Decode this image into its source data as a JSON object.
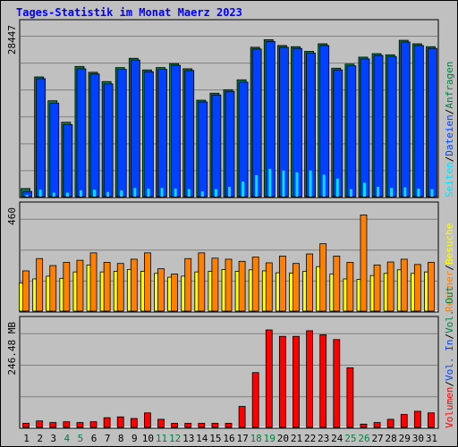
{
  "chart_data": {
    "type": "bar",
    "title": "Tages-Statistik im Monat Maerz 2023",
    "categories": [
      "1",
      "2",
      "3",
      "4",
      "5",
      "6",
      "7",
      "8",
      "9",
      "10",
      "11",
      "12",
      "13",
      "14",
      "15",
      "16",
      "17",
      "18",
      "19",
      "20",
      "21",
      "22",
      "23",
      "24",
      "25",
      "26",
      "27",
      "28",
      "29",
      "30",
      "31"
    ],
    "weekend_days": [
      "4",
      "5",
      "11",
      "12",
      "18",
      "19",
      "25",
      "26"
    ],
    "panels": [
      {
        "name": "requests",
        "ymax_label": "28447",
        "ymax": 28447,
        "grid": true,
        "series": [
          {
            "name": "Anfragen",
            "color": "#008040",
            "values": [
              1400,
              20600,
              16500,
              12800,
              22400,
              21400,
              19800,
              22200,
              23800,
              21800,
              22200,
              22900,
              22000,
              16600,
              17800,
              18400,
              20100,
              25700,
              27000,
              26000,
              25800,
              25000,
              26300,
              22100,
              22800,
              24000,
              24600,
              24400,
              26900,
              26300,
              25800
            ]
          },
          {
            "name": "Dateien",
            "color": "#0040ff",
            "values": [
              900,
              20300,
              16100,
              12400,
              22000,
              21100,
              19400,
              21900,
              23500,
              21500,
              21900,
              22600,
              21700,
              16300,
              17500,
              18100,
              19700,
              25400,
              26700,
              25700,
              25500,
              24700,
              26000,
              21800,
              22500,
              23700,
              24300,
              24100,
              26600,
              26000,
              25500
            ]
          },
          {
            "name": "Seiten",
            "color": "#00e0ff",
            "values": [
              320,
              1200,
              700,
              700,
              1100,
              1200,
              800,
              1100,
              1500,
              1400,
              1500,
              1400,
              1300,
              900,
              1300,
              1700,
              2600,
              3700,
              4800,
              4500,
              4200,
              4500,
              3800,
              3100,
              1300,
              2400,
              1700,
              1500,
              1600,
              1400,
              1300
            ]
          }
        ]
      },
      {
        "name": "visits",
        "ymax_label": "460",
        "ymax": 460,
        "grid": true,
        "series": [
          {
            "name": "Besuche",
            "color": "#ffff00",
            "values": [
              132,
              152,
              165,
              155,
              185,
              218,
              185,
              188,
              196,
              188,
              178,
              160,
              165,
              185,
              188,
              196,
              188,
              195,
              190,
              181,
              180,
              188,
              210,
              175,
              152,
              150,
              168,
              178,
              195,
              178,
              185
            ]
          },
          {
            "name": "Rechner",
            "color": "#ff8000",
            "values": [
              190,
              248,
              215,
              230,
              240,
              275,
              230,
              225,
              245,
              275,
              200,
              175,
              248,
              275,
              250,
              245,
              235,
              255,
              228,
              260,
              225,
              270,
              318,
              260,
              230,
              454,
              218,
              232,
              245,
              220,
              230
            ]
          }
        ]
      },
      {
        "name": "volume",
        "ymax_label": "246.48 MB",
        "ymax": 246.48,
        "grid": true,
        "series": [
          {
            "name": "Volumen",
            "color": "#ff0000",
            "values": [
              10,
              16,
              12,
              14,
              12,
              14,
              24,
              26,
              22,
              36,
              20,
              10,
              10,
              10,
              10,
              10,
              52,
              136,
              242,
              226,
              226,
              240,
              230,
              218,
              148,
              8,
              12,
              20,
              32,
              40,
              36
            ]
          }
        ]
      }
    ],
    "right_axis_labels": [
      {
        "text": "Anfragen",
        "color": "#008040"
      },
      {
        "text": "Dateien",
        "color": "#0040ff"
      },
      {
        "text": "Seiten",
        "color": "#00e0ff"
      },
      {
        "text": "Besuche",
        "color": "#ffff00"
      },
      {
        "text": "Rechner",
        "color": "#ff8000"
      },
      {
        "text": "Vol. Out",
        "color": "#008040"
      },
      {
        "text": "Vol. In",
        "color": "#0040ff"
      },
      {
        "text": "Volumen",
        "color": "#ff0000"
      }
    ],
    "colors": {
      "background": "#c0c0c0",
      "panel": "#c0c0c0",
      "grid": "#808080",
      "title": "#0000ff",
      "weekend_label": "#008040",
      "day_label": "#000000"
    }
  }
}
